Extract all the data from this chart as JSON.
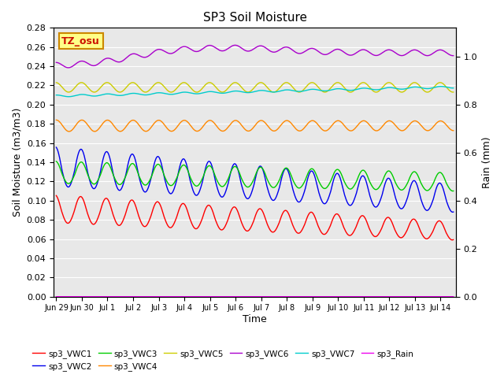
{
  "title": "SP3 Soil Moisture",
  "xlabel": "Time",
  "ylabel_left": "Soil Moisture (m3/m3)",
  "ylabel_right": "Rain (mm)",
  "xlim_days": [
    -0.1,
    15.6
  ],
  "ylim_left": [
    0.0,
    0.28
  ],
  "ylim_right": [
    0.0,
    1.12
  ],
  "yticks_left": [
    0.0,
    0.02,
    0.04,
    0.06,
    0.08,
    0.1,
    0.12,
    0.14,
    0.16,
    0.18,
    0.2,
    0.22,
    0.24,
    0.26,
    0.28
  ],
  "yticks_right_labels": [
    "0.0",
    "0.2",
    "0.4",
    "0.6",
    "0.8",
    "1.0"
  ],
  "xtick_labels": [
    "Jun 29",
    "Jun 30",
    "Jul 1",
    "Jul 2",
    "Jul 3",
    "Jul 4",
    "Jul 5",
    "Jul 6",
    "Jul 7",
    "Jul 8",
    "Jul 9",
    "Jul 10",
    "Jul 11",
    "Jul 12",
    "Jul 13",
    "Jul 14"
  ],
  "xtick_positions": [
    0,
    1,
    2,
    3,
    4,
    5,
    6,
    7,
    8,
    9,
    10,
    11,
    12,
    13,
    14,
    15
  ],
  "legend_entries": [
    {
      "label": "sp3_VWC1",
      "color": "#ff0000"
    },
    {
      "label": "sp3_VWC2",
      "color": "#0000ee"
    },
    {
      "label": "sp3_VWC3",
      "color": "#00cc00"
    },
    {
      "label": "sp3_VWC4",
      "color": "#ff8800"
    },
    {
      "label": "sp3_VWC5",
      "color": "#cccc00"
    },
    {
      "label": "sp3_VWC6",
      "color": "#aa00cc"
    },
    {
      "label": "sp3_VWC7",
      "color": "#00cccc"
    },
    {
      "label": "sp3_Rain",
      "color": "#ee00ee"
    }
  ],
  "annotation_text": "TZ_osu",
  "annotation_color": "#cc1100",
  "annotation_bg": "#ffff88",
  "annotation_border": "#cc8800",
  "bg_color": "#e8e8e8",
  "fig_bg": "#ffffff",
  "grid_color": "#ffffff",
  "linewidth": 1.0
}
